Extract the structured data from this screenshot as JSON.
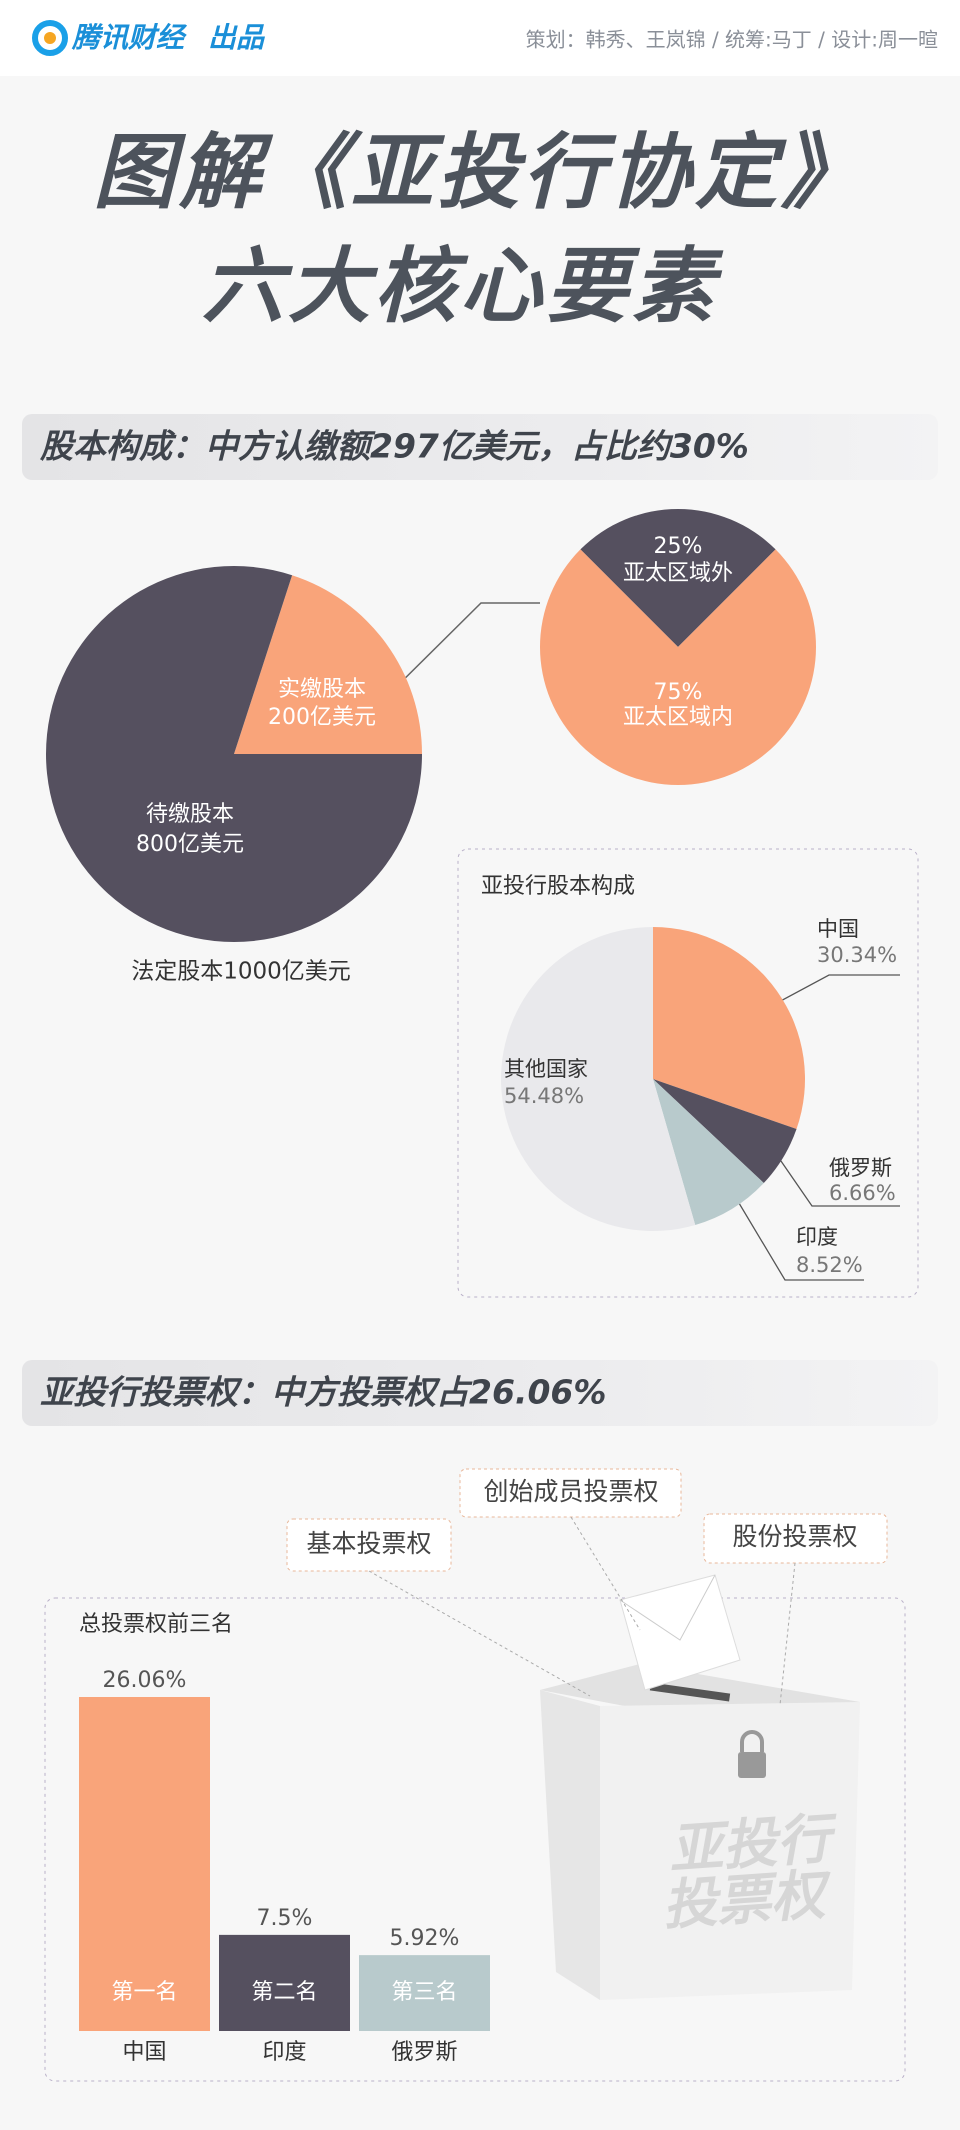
{
  "header": {
    "brand": "腾讯财经",
    "tag": "出品",
    "credits": "策划：韩秀、王岚锦 / 统筹:马丁 / 设计:周一暄"
  },
  "title": [
    "图解《亚投行协定》",
    "六大核心要素"
  ],
  "sections": [
    {
      "heading": "股本构成：中方认缴额297亿美元，占比约30%"
    },
    {
      "heading": "亚投行投票权：中方投票权占26.06%"
    }
  ],
  "ballot": {
    "labels": [
      "创始成员投票权",
      "基本投票权",
      "股份投票权"
    ],
    "box_text": [
      "亚投行",
      "投票权"
    ]
  },
  "chart_data": [
    {
      "type": "pie",
      "caption": "法定股本1000亿美元",
      "categories": [
        "实缴股本",
        "待缴股本"
      ],
      "values": [
        200,
        800
      ],
      "value_labels": [
        "200亿美元",
        "800亿美元"
      ],
      "colors": [
        "#f9a47a",
        "#55505f"
      ]
    },
    {
      "type": "pie",
      "categories": [
        "亚太区域外",
        "亚太区域内"
      ],
      "values": [
        25,
        75
      ],
      "value_labels": [
        "25%",
        "75%"
      ],
      "colors": [
        "#55505f",
        "#f9a47a"
      ]
    },
    {
      "type": "pie",
      "title": "亚投行股本构成",
      "categories": [
        "中国",
        "俄罗斯",
        "印度",
        "其他国家"
      ],
      "values": [
        30.34,
        6.66,
        8.52,
        54.48
      ],
      "value_labels": [
        "30.34%",
        "6.66%",
        "8.52%",
        "54.48%"
      ],
      "colors": [
        "#f9a47a",
        "#55505f",
        "#b8cacc",
        "#e9e9ec"
      ]
    },
    {
      "type": "bar",
      "title": "总投票权前三名",
      "categories": [
        "中国",
        "印度",
        "俄罗斯"
      ],
      "ranks": [
        "第一名",
        "第二名",
        "第三名"
      ],
      "values": [
        26.06,
        7.5,
        5.92
      ],
      "value_labels": [
        "26.06%",
        "7.5%",
        "5.92%"
      ],
      "colors": [
        "#f9a47a",
        "#55505f",
        "#b8cacc"
      ]
    }
  ]
}
